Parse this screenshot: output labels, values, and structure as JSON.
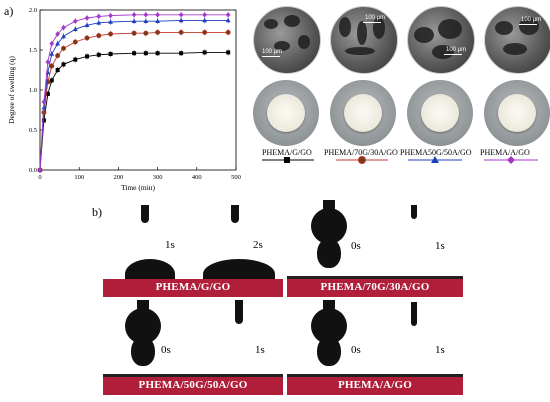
{
  "panel_a_label": "a)",
  "panel_b_label": "b)",
  "chart_data": {
    "type": "line",
    "xlabel": "Time (min)",
    "ylabel": "Degree of swelling (q)",
    "xlim": [
      0,
      500
    ],
    "ylim": [
      0.0,
      2.0
    ],
    "xticks": [
      "0",
      "100",
      "200",
      "300",
      "400",
      "500"
    ],
    "yticks": [
      "0.0",
      "0.5",
      "1.0",
      "1.5",
      "2.0"
    ],
    "x": [
      0,
      10,
      20,
      30,
      45,
      60,
      90,
      120,
      150,
      180,
      240,
      270,
      300,
      360,
      420,
      480
    ],
    "series": [
      {
        "name": "PHEMA/G/GO",
        "color": "#000000",
        "marker": "square",
        "values": [
          0.0,
          0.62,
          0.95,
          1.12,
          1.25,
          1.32,
          1.38,
          1.42,
          1.44,
          1.45,
          1.46,
          1.46,
          1.46,
          1.46,
          1.47,
          1.47
        ]
      },
      {
        "name": "PHEMA/70G/30A/GO",
        "color": "#c0392b",
        "marker": "circle",
        "values": [
          0.0,
          0.72,
          1.1,
          1.3,
          1.43,
          1.52,
          1.6,
          1.65,
          1.68,
          1.7,
          1.71,
          1.71,
          1.72,
          1.72,
          1.72,
          1.72
        ]
      },
      {
        "name": "PHEMA50G/50A/GO",
        "color": "#1f3fbf",
        "marker": "triangle",
        "values": [
          0.0,
          0.78,
          1.22,
          1.45,
          1.58,
          1.67,
          1.76,
          1.81,
          1.84,
          1.85,
          1.86,
          1.86,
          1.86,
          1.87,
          1.87,
          1.87
        ]
      },
      {
        "name": "PHEMA/A/GO",
        "color": "#a437c9",
        "marker": "diamond",
        "values": [
          0.0,
          0.85,
          1.35,
          1.58,
          1.7,
          1.78,
          1.86,
          1.9,
          1.92,
          1.93,
          1.94,
          1.94,
          1.94,
          1.94,
          1.94,
          1.94
        ]
      }
    ]
  },
  "sem": [
    {
      "scale": "100 µm"
    },
    {
      "scale": "100 µm"
    },
    {
      "scale": "100 µm"
    },
    {
      "scale": "100 µm"
    }
  ],
  "sample_legend": [
    {
      "name": "PHEMA/G/GO",
      "color": "#000000",
      "marker": "square"
    },
    {
      "name": "PHEMA/70G/30A/GO",
      "color": "#c0392b",
      "marker": "circle"
    },
    {
      "name": "PHEMA50G/50A/GO",
      "color": "#1f3fbf",
      "marker": "triangle"
    },
    {
      "name": "PHEMA/A/GO",
      "color": "#a437c9",
      "marker": "diamond"
    }
  ],
  "contact_angle": [
    {
      "name": "PHEMA/G/GO",
      "t1": "1s",
      "t2": "2s"
    },
    {
      "name": "PHEMA/70G/30A/GO",
      "t1": "0s",
      "t2": "1s"
    },
    {
      "name": "PHEMA/50G/50A/GO",
      "t1": "0s",
      "t2": "1s"
    },
    {
      "name": "PHEMA/A/GO",
      "t1": "0s",
      "t2": "1s"
    }
  ],
  "colors": {
    "substrate": "#b01e3a"
  }
}
